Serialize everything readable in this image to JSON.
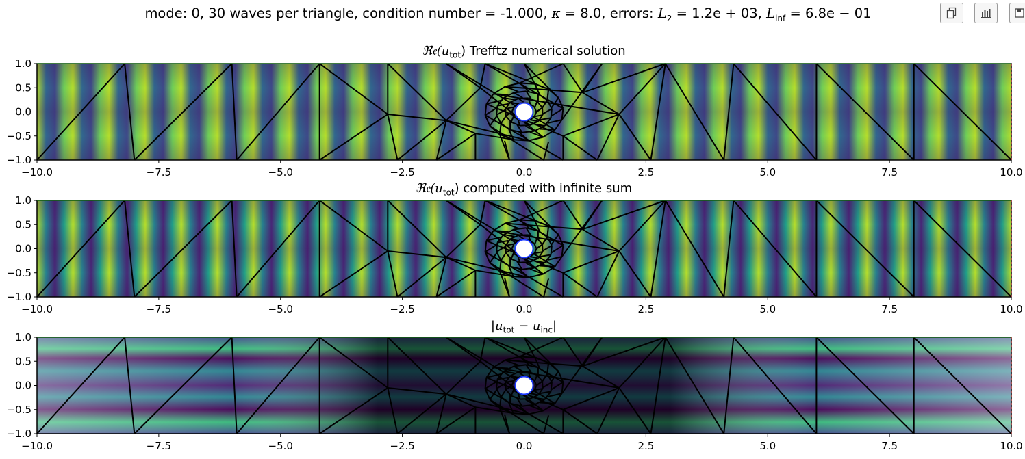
{
  "header": {
    "title_pre": "mode: 0, 30 waves per triangle, condition number = -1.000, ",
    "kappa_sym": "κ",
    "kappa_val": " = 8.0, errors: ",
    "l2_sym": "L",
    "l2_sub": "2",
    "l2_val": " = 1.2e + 03, ",
    "linf_sym": "L",
    "linf_sub": "inf",
    "linf_val": " = 6.8e − 01"
  },
  "toolbar": {
    "buttons": [
      {
        "name": "copy-button",
        "icon": "copy-icon"
      },
      {
        "name": "chart-button",
        "icon": "bar-chart-icon"
      },
      {
        "name": "save-button",
        "icon": "save-icon"
      }
    ]
  },
  "panels": [
    {
      "re": "ℜ𝔢(",
      "u": "u",
      "sub": "tot",
      "rest": ") Trefftz numerical solution",
      "colormap": "viridis"
    },
    {
      "re": "ℜ𝔢(",
      "u": "u",
      "sub": "tot",
      "rest": ") computed with infinite sum",
      "colormap": "viridis"
    },
    {
      "re": "|",
      "u": "u",
      "sub": "tot",
      "rest": " − ",
      "u2": "u",
      "sub2": "inc",
      "rest2": "|",
      "colormap": "viridis"
    }
  ],
  "chart_data": {
    "type": "heatmap",
    "xlim": [
      -10,
      10
    ],
    "ylim": [
      -1,
      1
    ],
    "xticks": [
      "−10.0",
      "−7.5",
      "−5.0",
      "−2.5",
      "0.0",
      "2.5",
      "5.0",
      "7.5",
      "10.0"
    ],
    "xtick_values": [
      -10,
      -7.5,
      -5,
      -2.5,
      0,
      2.5,
      5,
      7.5,
      10
    ],
    "yticks": [
      "1.0",
      "0.5",
      "0.0",
      "−0.5",
      "−1.0"
    ],
    "ytick_values": [
      1,
      0.5,
      0,
      -0.5,
      -1
    ],
    "obstacle_center": [
      0,
      0
    ],
    "obstacle_radius": 0.16,
    "mesh_color": "#000000",
    "obstacle_edge_color": "#1f3cff",
    "colors": {
      "low": "#440154",
      "mid": "#21918c",
      "high": "#fde725"
    }
  }
}
